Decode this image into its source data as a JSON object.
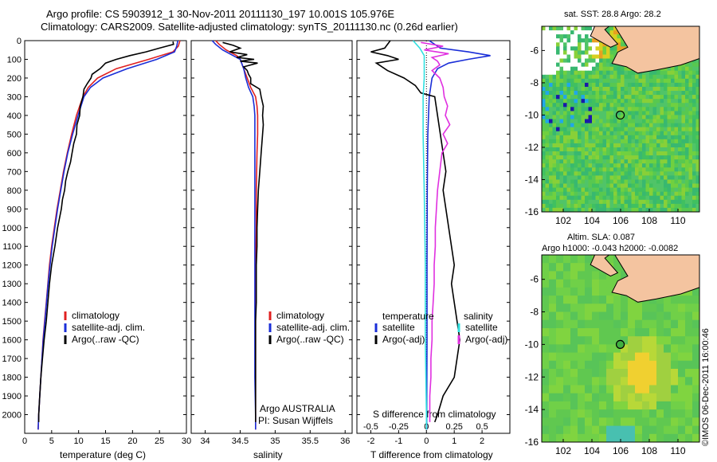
{
  "title_line1": "Argo profile: CS 5903912_1 30-Nov-2011 20111130_197 10.001S 105.976E",
  "title_line2": "Climatology: CARS2009. Satellite-adjusted climatology: synTS_20111130.nc (0.26d earlier)",
  "depth_ticks": [
    "0",
    "100",
    "200",
    "300",
    "400",
    "500",
    "600",
    "700",
    "800",
    "900",
    "1000",
    "1100",
    "1200",
    "1300",
    "1400",
    "1500",
    "1600",
    "1700",
    "1800",
    "1900",
    "2000"
  ],
  "colors": {
    "climatology": "#e02020",
    "satellite": "#1a2ed8",
    "argo": "#000000",
    "salinity_sat": "#30e0e0",
    "salinity_argo": "#e030e0",
    "land": "#f4c4a0"
  },
  "chart_data": [
    {
      "type": "line",
      "name": "temperature",
      "xlabel": "temperature (deg C)",
      "ylabel": "depth",
      "xlim": [
        0,
        30
      ],
      "ylim": [
        2100,
        0
      ],
      "xticks": [
        "0",
        "5",
        "10",
        "15",
        "20",
        "25",
        "30"
      ],
      "legend": [
        "climatology",
        "satellite-adj. clim.",
        "Argo(..raw -QC)"
      ],
      "series": [
        {
          "name": "climatology",
          "depth": [
            0,
            30,
            60,
            100,
            150,
            200,
            250,
            300,
            400,
            500,
            600,
            700,
            800,
            900,
            1000,
            1100,
            1200,
            1300,
            1400,
            1500,
            1600,
            1700,
            1800,
            1900,
            2000,
            2080
          ],
          "values": [
            28.8,
            28.5,
            27.5,
            23,
            17,
            13.5,
            11.8,
            10.8,
            9.6,
            8.7,
            7.9,
            7.2,
            6.6,
            6.0,
            5.5,
            5.0,
            4.6,
            4.3,
            4.0,
            3.7,
            3.4,
            3.2,
            3.0,
            2.8,
            2.6,
            2.5
          ]
        },
        {
          "name": "satellite",
          "depth": [
            0,
            30,
            60,
            100,
            150,
            200,
            250,
            300,
            400,
            500,
            600,
            700,
            800,
            900,
            1000,
            1100,
            1200,
            1300,
            1400,
            1500,
            1600,
            1700,
            1800,
            1900,
            2000,
            2080
          ],
          "values": [
            28.4,
            28.2,
            27.8,
            24.5,
            19,
            14.5,
            12.2,
            11.0,
            9.9,
            8.9,
            8.0,
            7.3,
            6.7,
            6.1,
            5.6,
            5.1,
            4.7,
            4.35,
            4.05,
            3.75,
            3.45,
            3.2,
            3.0,
            2.8,
            2.6,
            2.5
          ]
        },
        {
          "name": "Argo",
          "depth": [
            5,
            20,
            40,
            60,
            80,
            100,
            120,
            150,
            180,
            200,
            230,
            260,
            300,
            350,
            400,
            450,
            500,
            550,
            600,
            650,
            700,
            750,
            800,
            850,
            900,
            1000,
            1100,
            1200,
            1300,
            1400,
            1500,
            1600,
            1700,
            1800,
            1900,
            2000,
            2040
          ],
          "values": [
            27.5,
            27.6,
            25,
            22.5,
            19.5,
            17,
            15,
            14,
            12.5,
            12.3,
            11.6,
            11.0,
            10.8,
            10.3,
            10.2,
            9.7,
            9.6,
            9.1,
            8.8,
            8.5,
            8.0,
            7.6,
            7.4,
            7.0,
            6.8,
            6.1,
            5.6,
            5.0,
            4.6,
            4.3,
            4.0,
            3.6,
            3.3,
            3.0,
            2.8,
            2.6,
            2.6
          ]
        }
      ]
    },
    {
      "type": "line",
      "name": "salinity",
      "xlabel": "salinity",
      "xlim": [
        33.8,
        36.1
      ],
      "ylim": [
        2100,
        0
      ],
      "xticks": [
        "34",
        "34.5",
        "35",
        "35.5",
        "36"
      ],
      "legend": [
        "climatology",
        "satellite-adj. clim.",
        "Argo(..raw -QC)"
      ],
      "annotations": [
        "Argo AUSTRALIA",
        "PI: Susan Wijffels"
      ],
      "series": [
        {
          "name": "climatology",
          "depth": [
            0,
            20,
            50,
            80,
            100,
            150,
            200,
            250,
            300,
            350,
            400,
            500,
            600,
            800,
            1000,
            1200,
            1400,
            1600,
            1800,
            2000,
            2080
          ],
          "values": [
            34.15,
            34.2,
            34.3,
            34.45,
            34.5,
            34.55,
            34.6,
            34.65,
            34.72,
            34.74,
            34.75,
            34.75,
            34.74,
            34.73,
            34.73,
            34.72,
            34.72,
            34.72,
            34.72,
            34.72,
            34.72
          ]
        },
        {
          "name": "satellite",
          "depth": [
            0,
            20,
            50,
            80,
            100,
            150,
            200,
            250,
            300,
            350,
            400,
            500,
            600,
            800,
            1000,
            1200,
            1400,
            1600,
            1800,
            2000,
            2080
          ],
          "values": [
            34.1,
            34.15,
            34.25,
            34.4,
            34.5,
            34.55,
            34.58,
            34.62,
            34.68,
            34.7,
            34.71,
            34.71,
            34.71,
            34.71,
            34.71,
            34.71,
            34.71,
            34.71,
            34.71,
            34.72,
            34.72
          ]
        },
        {
          "name": "Argo",
          "depth": [
            10,
            25,
            40,
            60,
            75,
            90,
            100,
            110,
            120,
            140,
            160,
            180,
            200,
            230,
            260,
            300,
            350,
            400,
            450,
            500,
            600,
            700,
            800,
            900,
            1000,
            1100,
            1200,
            1300,
            1400,
            1500,
            1600,
            1700,
            1800,
            1900,
            2000,
            2040
          ],
          "values": [
            34.25,
            34.4,
            34.5,
            34.35,
            34.6,
            34.45,
            34.7,
            34.5,
            34.75,
            34.55,
            34.6,
            34.62,
            34.65,
            34.65,
            34.78,
            34.8,
            34.83,
            34.82,
            34.83,
            34.82,
            34.8,
            34.78,
            34.76,
            34.75,
            34.74,
            34.74,
            34.73,
            34.73,
            34.73,
            34.72,
            34.72,
            34.72,
            34.72,
            34.72,
            34.72,
            34.72
          ]
        }
      ]
    },
    {
      "type": "line",
      "name": "differences",
      "xlabel": "T difference from climatology",
      "xlabel2": "S difference from climatology",
      "xlim": [
        -2.5,
        3.0
      ],
      "ylim": [
        2100,
        0
      ],
      "xticks": [
        "-2",
        "-1",
        "0",
        "1",
        "2"
      ],
      "sticks": [
        "-0.5",
        "-0.25",
        "0",
        "0.25",
        "0.5"
      ],
      "legend_temperature": {
        "heading": "temperature",
        "items": [
          "satellite",
          "Argo(-adj)"
        ]
      },
      "legend_salinity": {
        "heading": "salinity",
        "items": [
          "satellite",
          "Argo(-adj)"
        ]
      },
      "series": [
        {
          "name": "T satellite",
          "depth": [
            0,
            40,
            60,
            80,
            100,
            120,
            150,
            200,
            300,
            500,
            800,
            1200,
            1600,
            2000,
            2080
          ],
          "values": [
            0.1,
            0.5,
            1.5,
            2.3,
            1.5,
            0.8,
            0.4,
            0.2,
            0.1,
            0.05,
            0.03,
            0.02,
            0.02,
            0.01,
            0.01
          ]
        },
        {
          "name": "T Argo",
          "depth": [
            0,
            40,
            60,
            80,
            100,
            120,
            160,
            200,
            240,
            280,
            300,
            400,
            500,
            600,
            700,
            800,
            900,
            1000,
            1100,
            1200,
            1300,
            1400,
            1500,
            1600,
            1700,
            1800,
            1900,
            2000,
            2040
          ],
          "values": [
            -1.3,
            -1.5,
            -2.0,
            -1.4,
            -1.0,
            -1.8,
            -1.4,
            -0.8,
            -0.4,
            -0.2,
            0.3,
            0.4,
            0.5,
            0.6,
            0.7,
            0.6,
            0.7,
            0.8,
            0.9,
            1.0,
            0.9,
            1.0,
            1.1,
            1.2,
            1.1,
            1.0,
            0.6,
            0.4,
            0.3
          ]
        },
        {
          "name": "S satellite",
          "depth": [
            0,
            40,
            80,
            120,
            200,
            300,
            500,
            800,
            1200,
            1600,
            2000,
            2080
          ],
          "values": [
            -0.12,
            -0.06,
            -0.02,
            -0.02,
            -0.02,
            -0.03,
            -0.03,
            -0.02,
            -0.01,
            -0.01,
            0.0,
            0.0
          ]
        },
        {
          "name": "S Argo",
          "depth": [
            10,
            30,
            50,
            70,
            90,
            110,
            130,
            160,
            200,
            250,
            300,
            350,
            400,
            450,
            500,
            550,
            600,
            700,
            800,
            900,
            1000,
            1100,
            1200,
            1300,
            1400,
            1500,
            1600,
            1700,
            1800,
            1900,
            2000,
            2040
          ],
          "values": [
            -0.05,
            0.15,
            -0.02,
            0.2,
            0.05,
            0.1,
            0.12,
            0.05,
            0.12,
            0.15,
            0.16,
            0.19,
            0.17,
            0.21,
            0.15,
            0.19,
            0.14,
            0.12,
            0.1,
            0.09,
            0.08,
            0.08,
            0.07,
            0.07,
            0.06,
            0.05,
            0.05,
            0.04,
            0.04,
            0.03,
            0.03,
            0.03
          ]
        }
      ]
    },
    {
      "type": "heatmap",
      "name": "sst map",
      "title": "sat. SST: 28.8  Argo: 28.2",
      "xticks": [
        "102",
        "104",
        "106",
        "108",
        "110"
      ],
      "yticks": [
        "-6",
        "-8",
        "-10",
        "-12",
        "-14",
        "-16"
      ],
      "xlim": [
        100.5,
        111.5
      ],
      "ylim": [
        -16,
        -4.5
      ],
      "argo_position": [
        105.976,
        -10.001
      ]
    },
    {
      "type": "heatmap",
      "name": "sla map",
      "title": "Altim. SLA: 0.087",
      "subtitle": "Argo h1000: -0.043  h2000: -0.0082",
      "xticks": [
        "102",
        "104",
        "106",
        "108",
        "110"
      ],
      "yticks": [
        "-6",
        "-8",
        "-10",
        "-12",
        "-14",
        "-16"
      ],
      "xlim": [
        100.5,
        111.5
      ],
      "ylim": [
        -16,
        -4.5
      ],
      "argo_position": [
        105.976,
        -10.001
      ]
    }
  ],
  "credit": "©IMOS 06-Dec-2011 16:00:46"
}
